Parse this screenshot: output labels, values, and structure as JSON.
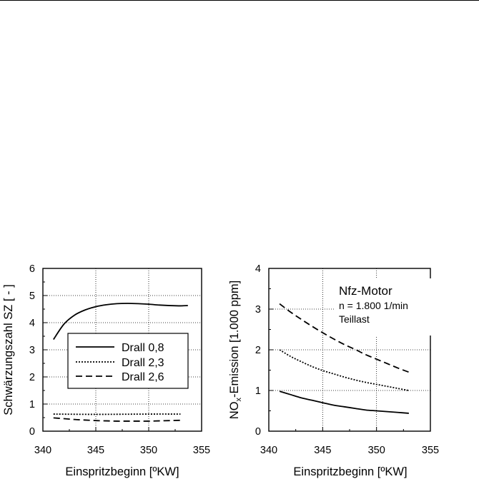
{
  "chart_data": [
    {
      "type": "line",
      "xlabel": "Einspritzbeginn [ºKW]",
      "ylabel": "Schwärzungszahl SZ [ - ]",
      "xlim": [
        340,
        355
      ],
      "ylim": [
        0,
        6
      ],
      "xticks": [
        "340",
        "345",
        "350",
        "355"
      ],
      "yticks": [
        "0",
        "1",
        "2",
        "3",
        "4",
        "5",
        "6"
      ],
      "grid": true,
      "legend_position": "center",
      "series": [
        {
          "name": "Drall 0,8",
          "dash": "solid",
          "x": [
            341,
            342,
            343,
            344,
            345,
            346,
            347,
            348,
            349,
            350,
            351,
            352,
            353,
            353.7
          ],
          "y": [
            3.38,
            3.95,
            4.28,
            4.47,
            4.59,
            4.66,
            4.7,
            4.71,
            4.7,
            4.68,
            4.65,
            4.63,
            4.62,
            4.63
          ]
        },
        {
          "name": "Drall 2,3",
          "dash": "dotted",
          "x": [
            341,
            345,
            350,
            353
          ],
          "y": [
            0.63,
            0.62,
            0.63,
            0.63
          ]
        },
        {
          "name": "Drall 2,6",
          "dash": "dashed",
          "x": [
            341,
            342,
            343,
            344,
            345,
            346,
            347,
            348,
            349,
            350,
            351,
            352,
            353
          ],
          "y": [
            0.49,
            0.46,
            0.43,
            0.41,
            0.39,
            0.38,
            0.37,
            0.37,
            0.37,
            0.37,
            0.38,
            0.39,
            0.4
          ]
        }
      ]
    },
    {
      "type": "line",
      "xlabel": "Einspritzbeginn [ºKW]",
      "ylabel_main": "NO",
      "ylabel_sub": "x",
      "ylabel_rest": "-Emission [1.000 ppm]",
      "xlim": [
        340,
        355
      ],
      "ylim": [
        0,
        4
      ],
      "xticks": [
        "340",
        "345",
        "350",
        "355"
      ],
      "yticks": [
        "0",
        "1",
        "2",
        "3",
        "4"
      ],
      "grid": true,
      "annotations": [
        "Nfz-Motor",
        "n = 1.800 1/min",
        "Teillast"
      ],
      "series": [
        {
          "dash": "solid",
          "x": [
            341,
            342,
            343,
            344,
            345,
            346,
            347,
            348,
            349,
            350,
            351,
            352,
            353
          ],
          "y": [
            0.98,
            0.9,
            0.82,
            0.76,
            0.7,
            0.64,
            0.6,
            0.56,
            0.52,
            0.5,
            0.48,
            0.46,
            0.44
          ]
        },
        {
          "dash": "dotted",
          "x": [
            341,
            342,
            343,
            344,
            345,
            346,
            347,
            348,
            349,
            350,
            351,
            352,
            353
          ],
          "y": [
            2.0,
            1.84,
            1.71,
            1.59,
            1.49,
            1.41,
            1.33,
            1.26,
            1.2,
            1.15,
            1.1,
            1.05,
            1.0
          ]
        },
        {
          "dash": "dashed",
          "x": [
            341,
            342,
            343,
            344,
            345,
            346,
            347,
            348,
            349,
            350,
            351,
            352,
            353
          ],
          "y": [
            3.13,
            2.93,
            2.75,
            2.58,
            2.42,
            2.27,
            2.13,
            2.01,
            1.88,
            1.77,
            1.66,
            1.55,
            1.45
          ]
        }
      ]
    }
  ]
}
